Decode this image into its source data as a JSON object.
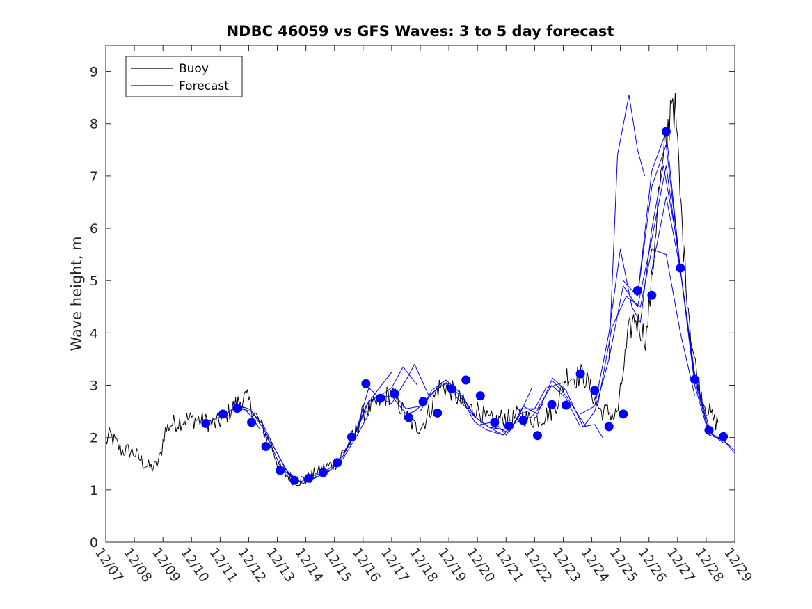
{
  "chart_data": {
    "type": "line",
    "title": "NDBC 46059 vs GFS Waves: 3 to 5 day forecast",
    "xlabel": "",
    "ylabel": "Wave height, m",
    "xlim": [
      0,
      22
    ],
    "ylim": [
      0,
      9.5
    ],
    "y_ticks": [
      0,
      1,
      2,
      3,
      4,
      5,
      6,
      7,
      8,
      9
    ],
    "x_tick_labels": [
      "12/07",
      "12/08",
      "12/09",
      "12/10",
      "12/11",
      "12/12",
      "12/13",
      "12/14",
      "12/15",
      "12/16",
      "12/17",
      "12/18",
      "12/19",
      "12/20",
      "12/21",
      "12/22",
      "12/23",
      "12/24",
      "12/25",
      "12/26",
      "12/27",
      "12/28",
      "12/29"
    ],
    "colors": {
      "buoy": "#000000",
      "forecast": "#0000ee",
      "points": "#0000ff"
    },
    "legend": {
      "position": "top-left",
      "entries": [
        "Buoy",
        "Forecast"
      ]
    },
    "buoy_anchors": [
      [
        0.0,
        1.9
      ],
      [
        0.15,
        2.05
      ],
      [
        0.35,
        1.9
      ],
      [
        0.55,
        1.75
      ],
      [
        0.8,
        1.75
      ],
      [
        1.0,
        1.7
      ],
      [
        1.15,
        1.62
      ],
      [
        1.35,
        1.5
      ],
      [
        1.55,
        1.42
      ],
      [
        1.75,
        1.45
      ],
      [
        1.9,
        1.6
      ],
      [
        2.05,
        2.1
      ],
      [
        2.25,
        2.25
      ],
      [
        2.55,
        2.3
      ],
      [
        2.8,
        2.35
      ],
      [
        3.1,
        2.35
      ],
      [
        3.5,
        2.3
      ],
      [
        3.8,
        2.25
      ],
      [
        4.1,
        2.35
      ],
      [
        4.4,
        2.55
      ],
      [
        4.7,
        2.7
      ],
      [
        4.9,
        2.75
      ],
      [
        5.1,
        2.6
      ],
      [
        5.3,
        2.35
      ],
      [
        5.6,
        2.05
      ],
      [
        5.9,
        1.7
      ],
      [
        6.1,
        1.4
      ],
      [
        6.4,
        1.25
      ],
      [
        6.7,
        1.18
      ],
      [
        7.0,
        1.2
      ],
      [
        7.3,
        1.3
      ],
      [
        7.6,
        1.4
      ],
      [
        7.9,
        1.48
      ],
      [
        8.1,
        1.55
      ],
      [
        8.4,
        1.8
      ],
      [
        8.7,
        2.05
      ],
      [
        8.9,
        2.35
      ],
      [
        9.1,
        2.55
      ],
      [
        9.4,
        2.6
      ],
      [
        9.7,
        2.75
      ],
      [
        10.0,
        2.85
      ],
      [
        10.2,
        2.7
      ],
      [
        10.5,
        2.4
      ],
      [
        10.8,
        2.2
      ],
      [
        11.1,
        2.25
      ],
      [
        11.4,
        2.6
      ],
      [
        11.6,
        2.95
      ],
      [
        11.8,
        3.0
      ],
      [
        12.1,
        2.9
      ],
      [
        12.4,
        2.7
      ],
      [
        12.7,
        2.55
      ],
      [
        13.0,
        2.55
      ],
      [
        13.3,
        2.35
      ],
      [
        13.6,
        2.3
      ],
      [
        13.9,
        2.4
      ],
      [
        14.2,
        2.35
      ],
      [
        14.5,
        2.45
      ],
      [
        14.8,
        2.35
      ],
      [
        15.0,
        2.35
      ],
      [
        15.3,
        2.4
      ],
      [
        15.6,
        2.5
      ],
      [
        15.9,
        2.8
      ],
      [
        16.1,
        3.2
      ],
      [
        16.4,
        3.15
      ],
      [
        16.7,
        3.2
      ],
      [
        16.9,
        3.0
      ],
      [
        17.1,
        2.75
      ],
      [
        17.3,
        2.5
      ],
      [
        17.6,
        2.5
      ],
      [
        17.8,
        2.4
      ],
      [
        17.95,
        2.6
      ],
      [
        18.1,
        3.3
      ],
      [
        18.3,
        4.0
      ],
      [
        18.5,
        4.3
      ],
      [
        18.7,
        4.1
      ],
      [
        18.9,
        3.9
      ],
      [
        19.1,
        5.0
      ],
      [
        19.3,
        6.5
      ],
      [
        19.5,
        7.2
      ],
      [
        19.7,
        8.0
      ],
      [
        19.8,
        8.7
      ],
      [
        19.95,
        8.0
      ],
      [
        20.1,
        6.5
      ],
      [
        20.3,
        5.0
      ],
      [
        20.5,
        3.8
      ],
      [
        20.7,
        3.1
      ],
      [
        20.9,
        2.7
      ],
      [
        21.1,
        2.5
      ],
      [
        21.3,
        2.3
      ],
      [
        21.45,
        2.3
      ]
    ],
    "forecast_runs": [
      [
        [
          3.4,
          2.28
        ],
        [
          3.8,
          2.35
        ],
        [
          4.1,
          2.42
        ],
        [
          4.5,
          2.55
        ],
        [
          4.8,
          2.58
        ],
        [
          5.1,
          2.4
        ],
        [
          5.4,
          2.15
        ]
      ],
      [
        [
          4.1,
          2.4
        ],
        [
          4.6,
          2.62
        ],
        [
          5.0,
          2.55
        ],
        [
          5.5,
          2.25
        ],
        [
          5.9,
          1.8
        ],
        [
          6.3,
          1.38
        ],
        [
          6.6,
          1.2
        ]
      ],
      [
        [
          4.7,
          2.55
        ],
        [
          5.1,
          2.5
        ],
        [
          5.6,
          2.1
        ],
        [
          6.1,
          1.45
        ],
        [
          6.6,
          1.18
        ],
        [
          7.1,
          1.2
        ],
        [
          7.4,
          1.25
        ]
      ],
      [
        [
          5.5,
          2.1
        ],
        [
          5.9,
          1.8
        ],
        [
          6.4,
          1.3
        ],
        [
          6.9,
          1.12
        ],
        [
          7.4,
          1.25
        ],
        [
          7.9,
          1.4
        ],
        [
          8.2,
          1.55
        ]
      ],
      [
        [
          6.3,
          1.38
        ],
        [
          6.8,
          1.15
        ],
        [
          7.3,
          1.28
        ],
        [
          7.8,
          1.35
        ],
        [
          8.3,
          1.6
        ],
        [
          8.8,
          2.05
        ],
        [
          9.2,
          2.45
        ]
      ],
      [
        [
          7.3,
          1.3
        ],
        [
          7.8,
          1.4
        ],
        [
          8.3,
          1.65
        ],
        [
          8.7,
          2.05
        ],
        [
          9.1,
          2.6
        ],
        [
          9.5,
          2.9
        ],
        [
          10.0,
          3.25
        ]
      ],
      [
        [
          8.3,
          1.7
        ],
        [
          8.8,
          2.15
        ],
        [
          9.2,
          2.7
        ],
        [
          9.6,
          2.8
        ],
        [
          10.0,
          2.95
        ],
        [
          10.4,
          3.35
        ],
        [
          10.9,
          3.0
        ]
      ],
      [
        [
          8.8,
          2.2
        ],
        [
          9.2,
          2.95
        ],
        [
          9.6,
          2.75
        ],
        [
          10.0,
          2.65
        ],
        [
          10.5,
          3.1
        ],
        [
          10.8,
          3.4
        ],
        [
          11.3,
          2.8
        ]
      ],
      [
        [
          9.5,
          2.75
        ],
        [
          10.0,
          2.8
        ],
        [
          10.5,
          2.45
        ],
        [
          10.8,
          2.5
        ],
        [
          11.2,
          2.7
        ],
        [
          11.6,
          2.95
        ],
        [
          12.0,
          3.05
        ]
      ],
      [
        [
          10.1,
          2.82
        ],
        [
          10.5,
          2.55
        ],
        [
          11.0,
          2.6
        ],
        [
          11.4,
          2.85
        ],
        [
          11.9,
          3.05
        ],
        [
          12.3,
          2.75
        ],
        [
          12.9,
          2.4
        ]
      ],
      [
        [
          11.0,
          2.5
        ],
        [
          11.4,
          2.9
        ],
        [
          11.9,
          3.1
        ],
        [
          12.4,
          2.85
        ],
        [
          12.9,
          2.4
        ],
        [
          13.4,
          2.2
        ],
        [
          13.9,
          2.05
        ]
      ],
      [
        [
          11.9,
          3.05
        ],
        [
          12.4,
          2.8
        ],
        [
          12.9,
          2.3
        ],
        [
          13.3,
          2.15
        ],
        [
          13.9,
          2.05
        ],
        [
          14.4,
          2.35
        ],
        [
          14.9,
          2.95
        ]
      ],
      [
        [
          12.5,
          2.78
        ],
        [
          12.9,
          2.4
        ],
        [
          13.4,
          2.2
        ],
        [
          13.9,
          2.15
        ],
        [
          14.4,
          2.3
        ],
        [
          14.9,
          2.4
        ],
        [
          15.3,
          2.65
        ]
      ],
      [
        [
          13.1,
          2.25
        ],
        [
          13.6,
          2.3
        ],
        [
          14.0,
          2.05
        ],
        [
          14.5,
          2.45
        ],
        [
          15.0,
          2.55
        ],
        [
          15.4,
          2.95
        ],
        [
          16.0,
          3.05
        ]
      ],
      [
        [
          13.6,
          2.2
        ],
        [
          14.1,
          2.1
        ],
        [
          14.6,
          2.6
        ],
        [
          15.1,
          2.45
        ],
        [
          15.6,
          3.1
        ],
        [
          16.1,
          2.8
        ],
        [
          16.8,
          2.2
        ]
      ],
      [
        [
          14.5,
          2.55
        ],
        [
          15.1,
          2.55
        ],
        [
          15.6,
          3.0
        ],
        [
          16.1,
          2.75
        ],
        [
          16.6,
          2.2
        ],
        [
          17.1,
          2.25
        ],
        [
          17.4,
          1.98
        ]
      ],
      [
        [
          15.6,
          3.15
        ],
        [
          16.1,
          2.9
        ],
        [
          16.7,
          2.2
        ],
        [
          17.1,
          2.5
        ],
        [
          17.6,
          3.5
        ],
        [
          17.9,
          7.4
        ],
        [
          18.3,
          8.55
        ],
        [
          18.6,
          7.5
        ],
        [
          18.85,
          7.0
        ]
      ],
      [
        [
          16.6,
          2.45
        ],
        [
          17.1,
          2.6
        ],
        [
          17.6,
          4.0
        ],
        [
          18.0,
          5.6
        ],
        [
          18.4,
          4.5
        ],
        [
          18.7,
          4.2
        ],
        [
          19.1,
          6.0
        ],
        [
          19.5,
          7.2
        ],
        [
          19.9,
          6.0
        ]
      ],
      [
        [
          17.2,
          2.6
        ],
        [
          17.7,
          4.1
        ],
        [
          18.2,
          4.7
        ],
        [
          18.7,
          4.5
        ],
        [
          19.1,
          5.6
        ],
        [
          19.6,
          5.5
        ],
        [
          20.1,
          4.0
        ],
        [
          20.6,
          2.8
        ]
      ],
      [
        [
          17.6,
          3.5
        ],
        [
          18.1,
          4.9
        ],
        [
          18.6,
          4.5
        ],
        [
          19.1,
          5.8
        ],
        [
          19.6,
          7.2
        ],
        [
          20.1,
          5.2
        ],
        [
          20.6,
          3.2
        ],
        [
          21.1,
          2.2
        ]
      ],
      [
        [
          18.1,
          5.0
        ],
        [
          18.6,
          4.7
        ],
        [
          19.1,
          7.1
        ],
        [
          19.6,
          7.85
        ],
        [
          20.1,
          5.2
        ],
        [
          20.6,
          3.2
        ],
        [
          21.1,
          2.1
        ],
        [
          21.6,
          1.9
        ]
      ],
      [
        [
          18.6,
          4.7
        ],
        [
          19.1,
          6.8
        ],
        [
          19.6,
          7.6
        ],
        [
          20.1,
          5.2
        ],
        [
          20.6,
          3.1
        ],
        [
          21.1,
          2.1
        ],
        [
          21.6,
          1.95
        ],
        [
          22.0,
          1.75
        ]
      ],
      [
        [
          19.1,
          5.2
        ],
        [
          19.6,
          6.6
        ],
        [
          20.1,
          5.2
        ],
        [
          20.6,
          3.0
        ],
        [
          21.1,
          2.05
        ],
        [
          21.6,
          1.95
        ],
        [
          22.0,
          1.7
        ]
      ]
    ],
    "forecast_points": [
      {
        "x": 3.5,
        "y": 2.27
      },
      {
        "x": 4.1,
        "y": 2.45
      },
      {
        "x": 4.6,
        "y": 2.56
      },
      {
        "x": 5.1,
        "y": 2.29
      },
      {
        "x": 5.6,
        "y": 1.83
      },
      {
        "x": 6.1,
        "y": 1.37
      },
      {
        "x": 6.6,
        "y": 1.18
      },
      {
        "x": 7.1,
        "y": 1.22
      },
      {
        "x": 7.6,
        "y": 1.33
      },
      {
        "x": 8.1,
        "y": 1.52
      },
      {
        "x": 8.6,
        "y": 2.01
      },
      {
        "x": 9.1,
        "y": 3.03
      },
      {
        "x": 9.6,
        "y": 2.75
      },
      {
        "x": 10.1,
        "y": 2.84
      },
      {
        "x": 10.6,
        "y": 2.38
      },
      {
        "x": 11.1,
        "y": 2.69
      },
      {
        "x": 11.6,
        "y": 2.47
      },
      {
        "x": 12.1,
        "y": 2.93
      },
      {
        "x": 12.6,
        "y": 3.1
      },
      {
        "x": 13.1,
        "y": 2.8
      },
      {
        "x": 13.6,
        "y": 2.29
      },
      {
        "x": 14.1,
        "y": 2.22
      },
      {
        "x": 14.6,
        "y": 2.33
      },
      {
        "x": 15.1,
        "y": 2.04
      },
      {
        "x": 15.6,
        "y": 2.63
      },
      {
        "x": 16.1,
        "y": 2.62
      },
      {
        "x": 16.6,
        "y": 3.22
      },
      {
        "x": 17.1,
        "y": 2.9
      },
      {
        "x": 17.6,
        "y": 2.21
      },
      {
        "x": 18.1,
        "y": 2.45
      },
      {
        "x": 18.6,
        "y": 4.81
      },
      {
        "x": 19.1,
        "y": 4.72
      },
      {
        "x": 19.6,
        "y": 7.85
      },
      {
        "x": 20.1,
        "y": 5.24
      },
      {
        "x": 20.6,
        "y": 3.11
      },
      {
        "x": 21.1,
        "y": 2.14
      },
      {
        "x": 21.6,
        "y": 2.02
      }
    ]
  }
}
